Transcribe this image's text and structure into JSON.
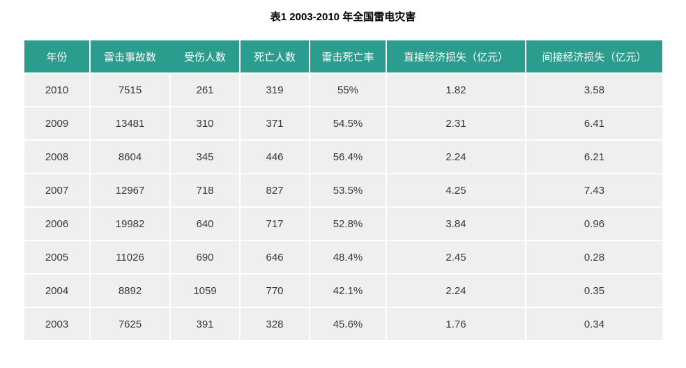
{
  "title": "表1 2003-2010 年全国雷电灾害",
  "colors": {
    "header_bg": "#2a9d8f",
    "header_text": "#ffffff",
    "row_bg": "#efefef",
    "cell_text": "#383838"
  },
  "chart_data": {
    "type": "table",
    "title": "表1 2003-2010 年全国雷电灾害",
    "columns": [
      "年份",
      "雷击事故数",
      "受伤人数",
      "死亡人数",
      "雷击死亡率",
      "直接经济损失（亿元）",
      "间接经济损失（亿元）"
    ],
    "rows": [
      [
        "2010",
        "7515",
        "261",
        "319",
        "55%",
        "1.82",
        "3.58"
      ],
      [
        "2009",
        "13481",
        "310",
        "371",
        "54.5%",
        "2.31",
        "6.41"
      ],
      [
        "2008",
        "8604",
        "345",
        "446",
        "56.4%",
        "2.24",
        "6.21"
      ],
      [
        "2007",
        "12967",
        "718",
        "827",
        "53.5%",
        "4.25",
        "7.43"
      ],
      [
        "2006",
        "19982",
        "640",
        "717",
        "52.8%",
        "3.84",
        "0.96"
      ],
      [
        "2005",
        "11026",
        "690",
        "646",
        "48.4%",
        "2.45",
        "0.28"
      ],
      [
        "2004",
        "8892",
        "1059",
        "770",
        "42.1%",
        "2.24",
        "0.35"
      ],
      [
        "2003",
        "7625",
        "391",
        "328",
        "45.6%",
        "1.76",
        "0.34"
      ]
    ],
    "layout": {
      "grid": "white 2px separators",
      "header_position": "top"
    }
  }
}
